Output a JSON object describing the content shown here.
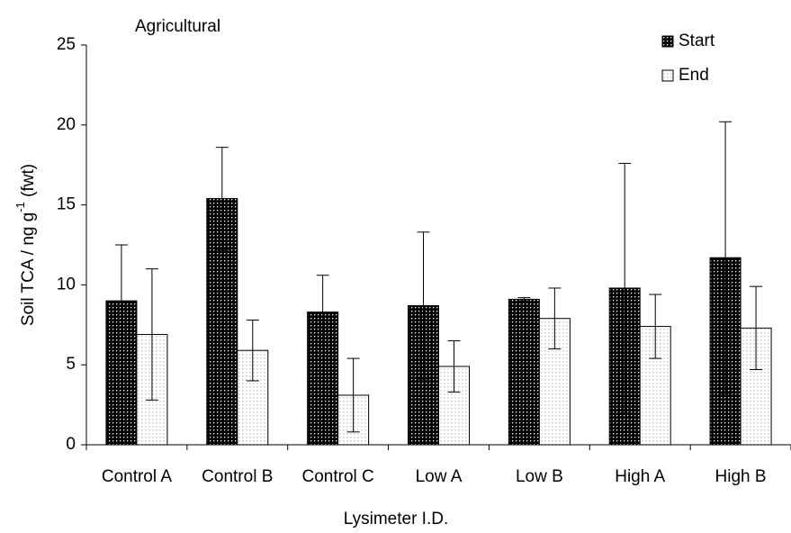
{
  "chart_data": {
    "type": "bar",
    "title": "Agricultural",
    "x_label": "Lysimeter I.D.",
    "y_label": "Soil TCA  /  ng g",
    "y_label_sup": "-1",
    "y_label_end": " (fwt)",
    "categories": [
      "Control A",
      "Control B",
      "Control C",
      "Low A",
      "Low B",
      "High A",
      "High B"
    ],
    "series": [
      {
        "name": "Start",
        "color": "#000000",
        "values": [
          9.0,
          15.4,
          8.3,
          8.7,
          9.1,
          9.8,
          11.7
        ],
        "errors": [
          3.5,
          3.2,
          2.3,
          4.6,
          0.1,
          7.8,
          8.5
        ]
      },
      {
        "name": "End",
        "color": "#c8c8c8",
        "values": [
          6.9,
          5.9,
          3.1,
          4.9,
          7.9,
          7.4,
          7.3
        ],
        "errors": [
          4.1,
          1.9,
          2.3,
          1.6,
          1.9,
          2.0,
          2.6
        ]
      }
    ],
    "ylim": [
      0,
      25
    ],
    "yticks": [
      0,
      5,
      10,
      15,
      20,
      25
    ],
    "grid": false,
    "legend": "upper right"
  }
}
